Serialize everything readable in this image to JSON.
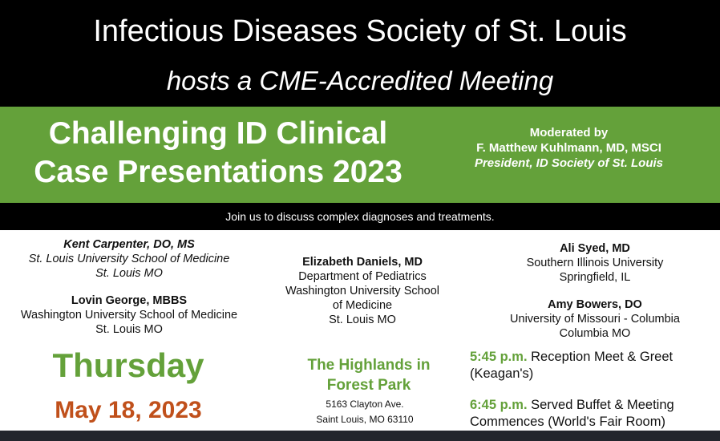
{
  "header": {
    "title": "Infectious Diseases Society of St. Louis",
    "subtitle": "hosts a CME-Accredited Meeting"
  },
  "event": {
    "title_line1": "Challenging ID Clinical",
    "title_line2": "Case Presentations 2023"
  },
  "moderator": {
    "label": "Moderated by",
    "name": "F. Matthew Kuhlmann, MD, MSCI",
    "role": "President, ID Society of St. Louis"
  },
  "tagline": "Join us to discuss complex diagnoses and treatments.",
  "speakers": {
    "kent": {
      "name": "Kent Carpenter, DO, MS",
      "line1": "St. Louis University School of Medicine",
      "line2": "St. Louis MO"
    },
    "lovin": {
      "name": "Lovin George, MBBS",
      "line1": "Washington University School of Medicine",
      "line2": "St. Louis MO"
    },
    "elizabeth": {
      "name": "Elizabeth Daniels, MD",
      "line1": "Department of Pediatrics",
      "line2": "Washington University School",
      "line3": "of Medicine",
      "line4": "St. Louis MO"
    },
    "ali": {
      "name": "Ali Syed, MD",
      "line1": "Southern Illinois University",
      "line2": "Springfield, IL"
    },
    "amy": {
      "name": "Amy Bowers, DO",
      "line1": "University of Missouri - Columbia",
      "line2": "Columbia MO"
    }
  },
  "when": {
    "day": "Thursday",
    "date": "May 18, 2023"
  },
  "venue": {
    "line1": "The Highlands in",
    "line2": "Forest Park",
    "address1": "5163 Clayton Ave.",
    "address2": "Saint Louis, MO 63110"
  },
  "schedule": [
    {
      "time": "5:45 p.m.",
      "text1": " Reception Meet & Greet",
      "text2": "(Keagan's)"
    },
    {
      "time": "6:45 p.m.",
      "text1": " Served Buffet & Meeting",
      "text2": "Commences (World's Fair Room)"
    }
  ]
}
